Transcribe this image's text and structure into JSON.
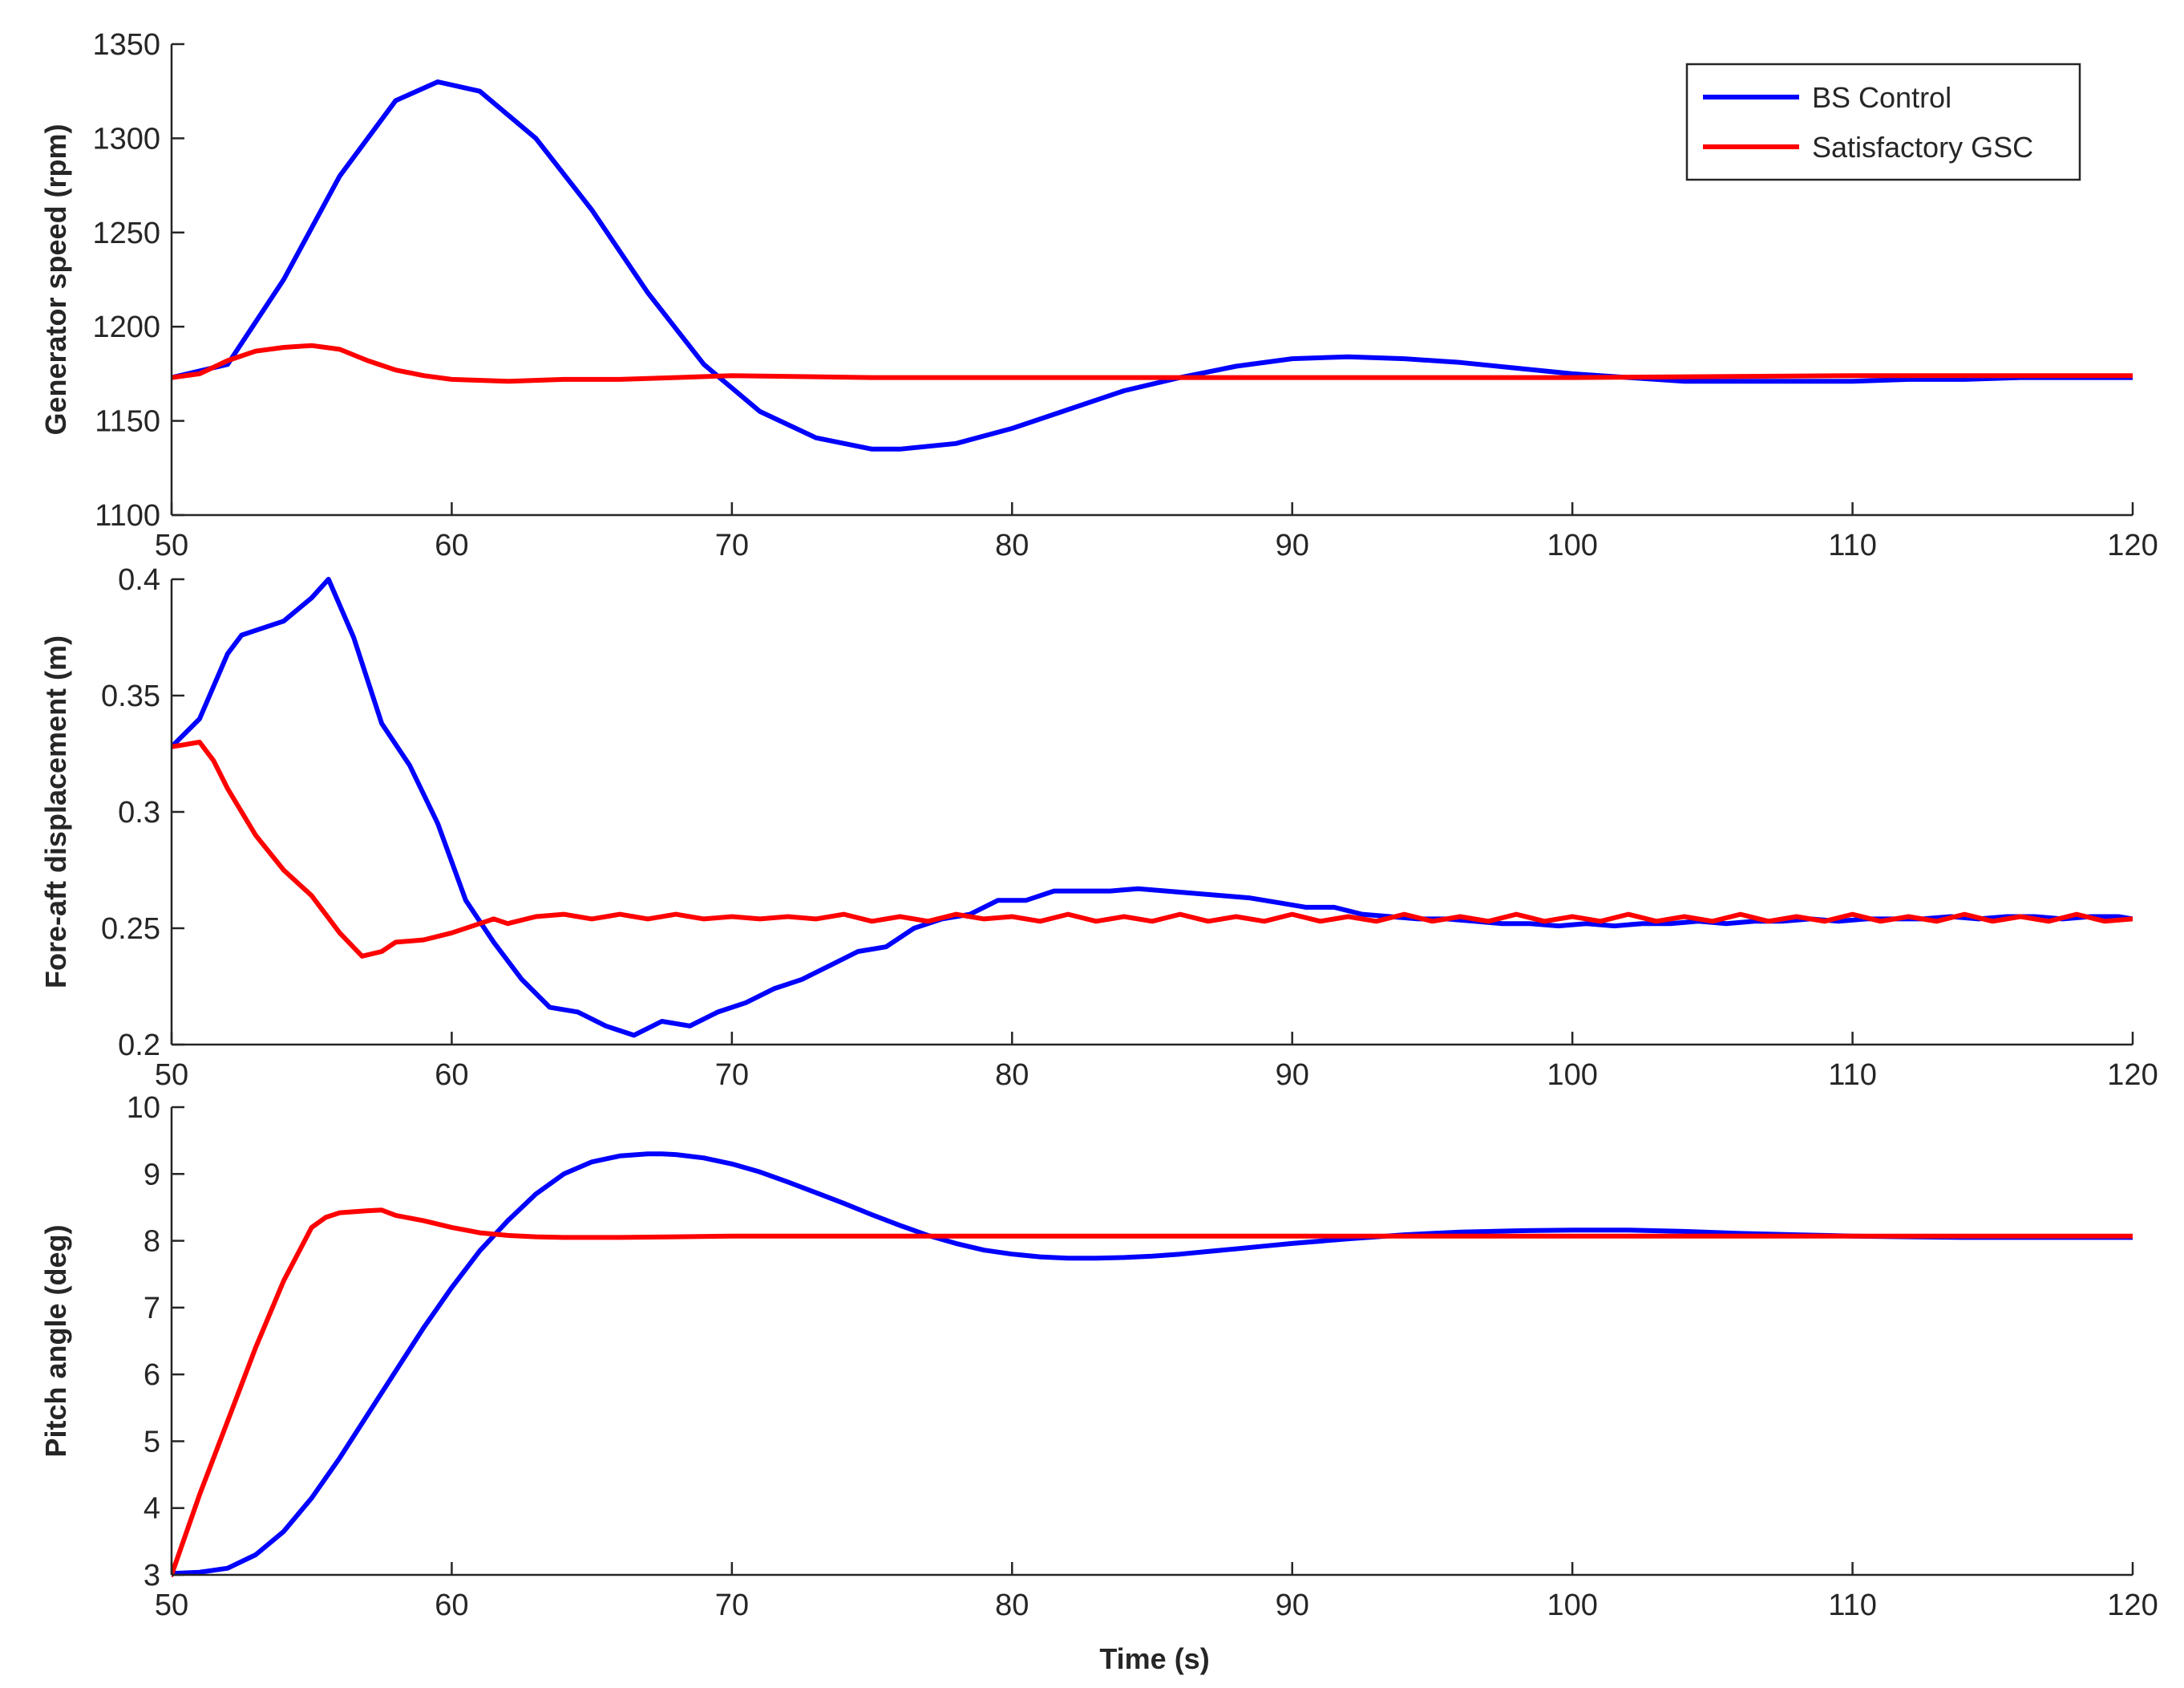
{
  "figure": {
    "xlabel": "Time (s)",
    "legend": {
      "position": "top-right",
      "entries": [
        {
          "name": "BS Control",
          "color": "#0000FF"
        },
        {
          "name": "Satisfactory GSC",
          "color": "#FF0000"
        }
      ]
    }
  },
  "chart_data": [
    {
      "type": "line",
      "title": "",
      "xlabel": "",
      "ylabel": "Generator speed (rpm)",
      "xlim": [
        50,
        120
      ],
      "ylim": [
        1100,
        1350
      ],
      "xticks": [
        50,
        60,
        70,
        80,
        90,
        100,
        110,
        120
      ],
      "yticks": [
        1100,
        1150,
        1200,
        1250,
        1300,
        1350
      ],
      "grid": false,
      "legend_position": "top-right",
      "series": [
        {
          "name": "BS Control",
          "color": "#0000FF",
          "x": [
            50,
            52,
            54,
            56,
            58,
            59.5,
            61,
            63,
            65,
            67,
            69,
            71,
            73,
            75,
            76,
            78,
            80,
            82,
            84,
            86,
            88,
            90,
            92,
            94,
            96,
            98,
            100,
            102,
            104,
            106,
            108,
            110,
            112,
            114,
            116,
            118,
            120
          ],
          "y": [
            1173,
            1180,
            1225,
            1280,
            1320,
            1330,
            1325,
            1300,
            1262,
            1218,
            1180,
            1155,
            1141,
            1135,
            1135,
            1138,
            1146,
            1156,
            1166,
            1173,
            1179,
            1183,
            1184,
            1183,
            1181,
            1178,
            1175,
            1173,
            1171,
            1171,
            1171,
            1171,
            1172,
            1172,
            1173,
            1173,
            1173
          ]
        },
        {
          "name": "Satisfactory GSC",
          "color": "#FF0000",
          "x": [
            50,
            51,
            52,
            53,
            54,
            55,
            56,
            57,
            58,
            59,
            60,
            62,
            64,
            66,
            68,
            70,
            75,
            80,
            90,
            100,
            110,
            120
          ],
          "y": [
            1173,
            1175,
            1182,
            1187,
            1189,
            1190,
            1188,
            1182,
            1177,
            1174,
            1172,
            1171,
            1172,
            1172,
            1173,
            1174,
            1173,
            1173,
            1173,
            1173,
            1174,
            1174
          ]
        }
      ]
    },
    {
      "type": "line",
      "title": "",
      "xlabel": "",
      "ylabel": "Fore-aft displacement (m)",
      "xlim": [
        50,
        120
      ],
      "ylim": [
        0.2,
        0.4
      ],
      "xticks": [
        50,
        60,
        70,
        80,
        90,
        100,
        110,
        120
      ],
      "yticks": [
        0.2,
        0.25,
        0.3,
        0.35,
        0.4
      ],
      "grid": false,
      "series": [
        {
          "name": "BS Control",
          "color": "#0000FF",
          "x": [
            50,
            51,
            52,
            52.5,
            53,
            54,
            55,
            55.6,
            56.5,
            57.5,
            58.5,
            59.5,
            60.5,
            61.5,
            62.5,
            63.5,
            64.5,
            65.5,
            66.5,
            67.5,
            68.5,
            69.5,
            70.5,
            71.5,
            72.5,
            73.5,
            74.5,
            75.5,
            76.5,
            77.5,
            78.5,
            79.5,
            80.5,
            81.5,
            82.5,
            83.5,
            84.5,
            85.5,
            86.5,
            87.5,
            88.5,
            89.5,
            90.5,
            91.5,
            92.5,
            93.5,
            94.5,
            95.5,
            96.5,
            97.5,
            98.5,
            99.5,
            100.5,
            101.5,
            102.5,
            103.5,
            104.5,
            105.5,
            106.5,
            107.5,
            108.5,
            109.5,
            110.5,
            111.5,
            112.5,
            113.5,
            114.5,
            115.5,
            116.5,
            117.5,
            118.5,
            119.5,
            120
          ],
          "y": [
            0.328,
            0.34,
            0.368,
            0.376,
            0.378,
            0.382,
            0.392,
            0.4,
            0.375,
            0.338,
            0.32,
            0.295,
            0.262,
            0.244,
            0.228,
            0.216,
            0.214,
            0.208,
            0.204,
            0.21,
            0.208,
            0.214,
            0.218,
            0.224,
            0.228,
            0.234,
            0.24,
            0.242,
            0.25,
            0.254,
            0.256,
            0.262,
            0.262,
            0.266,
            0.266,
            0.266,
            0.267,
            0.266,
            0.265,
            0.264,
            0.263,
            0.261,
            0.259,
            0.259,
            0.256,
            0.255,
            0.254,
            0.254,
            0.253,
            0.252,
            0.252,
            0.251,
            0.252,
            0.251,
            0.252,
            0.252,
            0.253,
            0.252,
            0.253,
            0.253,
            0.254,
            0.253,
            0.254,
            0.254,
            0.254,
            0.255,
            0.254,
            0.255,
            0.255,
            0.254,
            0.255,
            0.255,
            0.254
          ]
        },
        {
          "name": "Satisfactory GSC",
          "color": "#FF0000",
          "x": [
            50,
            50.5,
            51,
            51.5,
            52,
            53,
            54,
            55,
            56,
            56.8,
            57.5,
            58,
            59,
            60,
            61,
            61.5,
            62,
            63,
            64,
            65,
            66,
            67,
            68,
            69,
            70,
            71,
            72,
            73,
            74,
            75,
            76,
            77,
            78,
            79,
            80,
            81,
            82,
            83,
            84,
            85,
            86,
            87,
            88,
            89,
            90,
            91,
            92,
            93,
            94,
            95,
            96,
            97,
            98,
            99,
            100,
            101,
            102,
            103,
            104,
            105,
            106,
            107,
            108,
            109,
            110,
            111,
            112,
            113,
            114,
            115,
            116,
            117,
            118,
            119,
            120
          ],
          "y": [
            0.328,
            0.329,
            0.33,
            0.322,
            0.31,
            0.29,
            0.275,
            0.264,
            0.248,
            0.238,
            0.24,
            0.244,
            0.245,
            0.248,
            0.252,
            0.254,
            0.252,
            0.255,
            0.256,
            0.254,
            0.256,
            0.254,
            0.256,
            0.254,
            0.255,
            0.254,
            0.255,
            0.254,
            0.256,
            0.253,
            0.255,
            0.253,
            0.256,
            0.254,
            0.255,
            0.253,
            0.256,
            0.253,
            0.255,
            0.253,
            0.256,
            0.253,
            0.255,
            0.253,
            0.256,
            0.253,
            0.255,
            0.253,
            0.256,
            0.253,
            0.255,
            0.253,
            0.256,
            0.253,
            0.255,
            0.253,
            0.256,
            0.253,
            0.255,
            0.253,
            0.256,
            0.253,
            0.255,
            0.253,
            0.256,
            0.253,
            0.255,
            0.253,
            0.256,
            0.253,
            0.255,
            0.253,
            0.256,
            0.253,
            0.254
          ]
        }
      ]
    },
    {
      "type": "line",
      "title": "",
      "xlabel": "Time (s)",
      "ylabel": "Pitch angle (deg)",
      "xlim": [
        50,
        120
      ],
      "ylim": [
        3,
        10
      ],
      "xticks": [
        50,
        60,
        70,
        80,
        90,
        100,
        110,
        120
      ],
      "yticks": [
        3,
        4,
        5,
        6,
        7,
        8,
        9,
        10
      ],
      "grid": false,
      "series": [
        {
          "name": "BS Control",
          "color": "#0000FF",
          "x": [
            50,
            51,
            52,
            53,
            54,
            55,
            56,
            57,
            58,
            59,
            60,
            61,
            62,
            63,
            64,
            65,
            66,
            67,
            67.5,
            68,
            69,
            70,
            71,
            72,
            73,
            74,
            75,
            76,
            77,
            78,
            79,
            80,
            81,
            82,
            83,
            84,
            85,
            86,
            87,
            88,
            89,
            90,
            92,
            94,
            96,
            98,
            100,
            102,
            104,
            106,
            108,
            110,
            112,
            114,
            116,
            118,
            120
          ],
          "y": [
            3.02,
            3.04,
            3.1,
            3.3,
            3.65,
            4.15,
            4.75,
            5.4,
            6.05,
            6.7,
            7.3,
            7.85,
            8.3,
            8.7,
            9.0,
            9.18,
            9.27,
            9.3,
            9.3,
            9.29,
            9.24,
            9.15,
            9.03,
            8.88,
            8.72,
            8.56,
            8.39,
            8.23,
            8.08,
            7.96,
            7.86,
            7.8,
            7.76,
            7.74,
            7.74,
            7.75,
            7.77,
            7.8,
            7.84,
            7.88,
            7.92,
            7.96,
            8.03,
            8.09,
            8.13,
            8.15,
            8.16,
            8.16,
            8.14,
            8.11,
            8.09,
            8.07,
            8.06,
            8.05,
            8.05,
            8.05,
            8.05
          ]
        },
        {
          "name": "Satisfactory GSC",
          "color": "#FF0000",
          "x": [
            50,
            51,
            52,
            53,
            54,
            55,
            55.5,
            56,
            57,
            57.5,
            58,
            59,
            60,
            61,
            62,
            63,
            64,
            66,
            68,
            70,
            75,
            80,
            85,
            90,
            95,
            100,
            105,
            110,
            115,
            120
          ],
          "y": [
            3.0,
            4.2,
            5.3,
            6.4,
            7.4,
            8.2,
            8.35,
            8.42,
            8.45,
            8.46,
            8.38,
            8.3,
            8.2,
            8.12,
            8.08,
            8.06,
            8.05,
            8.05,
            8.06,
            8.07,
            8.07,
            8.07,
            8.07,
            8.07,
            8.07,
            8.07,
            8.07,
            8.07,
            8.07,
            8.07
          ]
        }
      ]
    }
  ]
}
